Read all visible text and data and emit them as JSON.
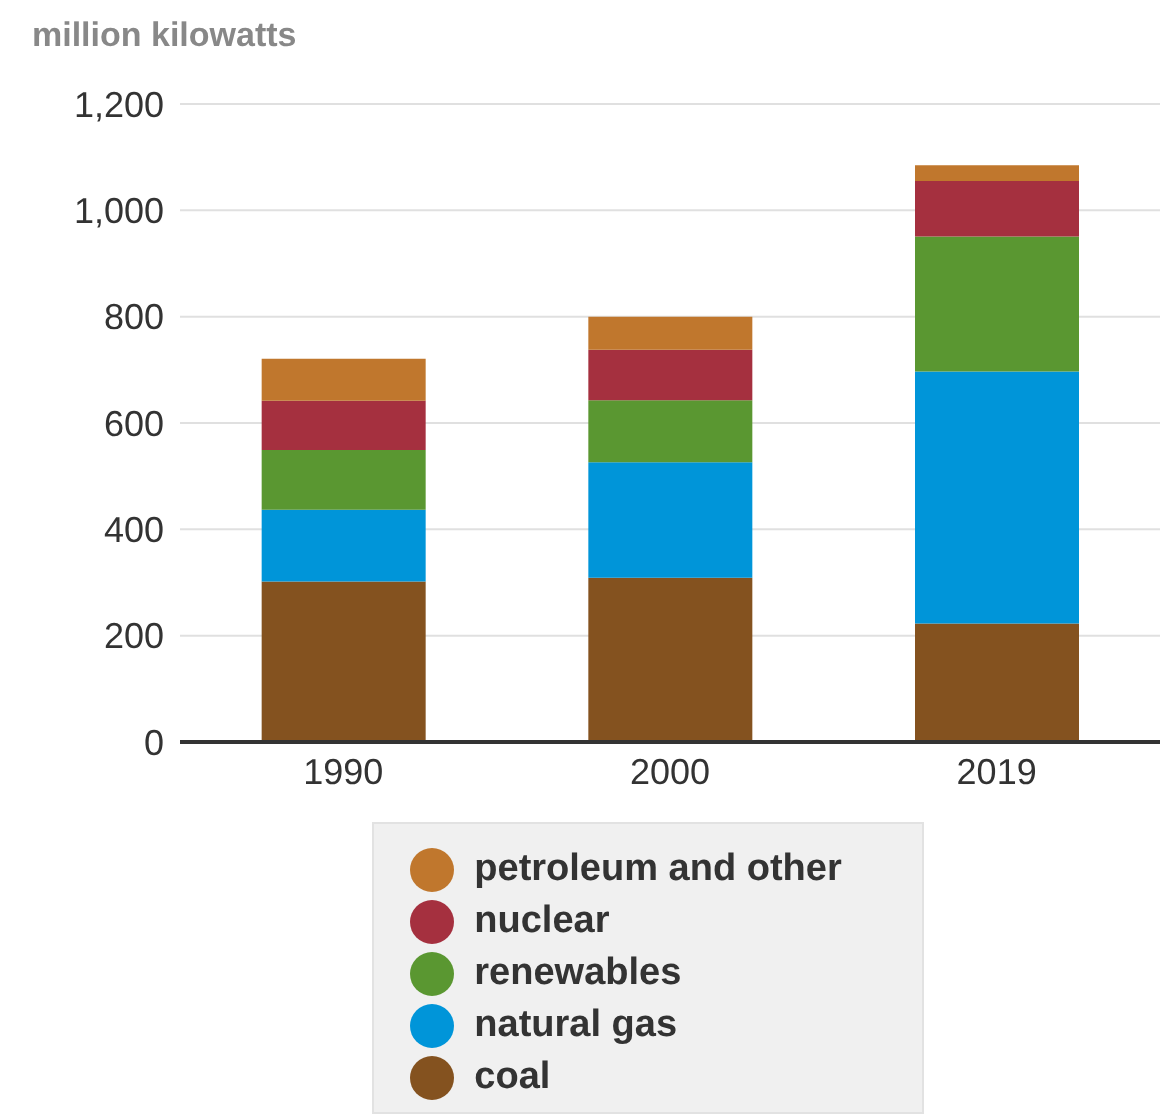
{
  "chart_data": {
    "type": "bar",
    "stacked": true,
    "ylabel": "million kilowatts",
    "categories": [
      "1990",
      "2000",
      "2019"
    ],
    "series": [
      {
        "name": "coal",
        "color": "#84521f",
        "values": [
          302,
          309,
          223
        ]
      },
      {
        "name": "natural gas",
        "color": "#0095d9",
        "values": [
          135,
          217,
          474
        ]
      },
      {
        "name": "renewables",
        "color": "#5a9731",
        "values": [
          112,
          117,
          254
        ]
      },
      {
        "name": "nuclear",
        "color": "#a5303f",
        "values": [
          93,
          95,
          104
        ]
      },
      {
        "name": "petroleum and other",
        "color": "#c0772d",
        "values": [
          79,
          62,
          30
        ]
      }
    ],
    "ylim": [
      0,
      1200
    ],
    "yticks": [
      {
        "value": 0,
        "label": "0"
      },
      {
        "value": 200,
        "label": "200"
      },
      {
        "value": 400,
        "label": "400"
      },
      {
        "value": 600,
        "label": "600"
      },
      {
        "value": 800,
        "label": "800"
      },
      {
        "value": 1000,
        "label": "1,000"
      },
      {
        "value": 1200,
        "label": "1,200"
      }
    ],
    "grid": "y",
    "legend": "bottom"
  }
}
